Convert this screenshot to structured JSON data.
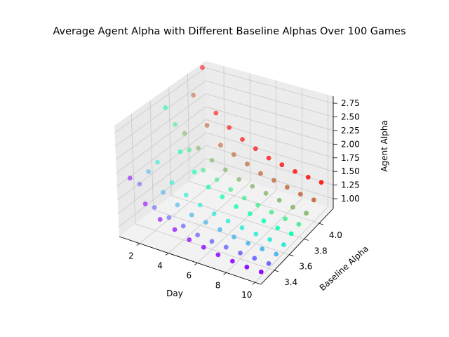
{
  "chart_data": {
    "type": "scatter3d",
    "title": "Average Agent Alpha with Different Baseline Alphas Over 100 Games",
    "xlabel": "Day",
    "ylabel": "Baseline Alpha",
    "zlabel": "Agent Alpha",
    "x_ticks": [
      "2",
      "4",
      "6",
      "8",
      "10"
    ],
    "y_ticks": [
      "3.4",
      "3.6",
      "3.8",
      "4.0"
    ],
    "z_ticks": [
      "1.00",
      "1.25",
      "1.50",
      "1.75",
      "2.00",
      "2.25",
      "2.50",
      "2.75"
    ],
    "xlim": [
      0.6,
      10.4
    ],
    "ylim": [
      3.22,
      4.19
    ],
    "zlim": [
      0.82,
      2.88
    ],
    "grid": true,
    "colormap": "rainbow (purple -> blue -> cyan -> green -> yellow -> orange -> red), colored by baseline alpha",
    "baselines": [
      3.3,
      3.4,
      3.5,
      3.6,
      3.7,
      3.8,
      3.9,
      4.0,
      4.1
    ],
    "days": [
      1,
      2,
      3,
      4,
      5,
      6,
      7,
      8,
      9,
      10
    ],
    "series": [
      {
        "baseline": 3.3,
        "values": [
          1.84,
          1.45,
          1.25,
          1.15,
          1.05,
          1.0,
          0.95,
          0.92,
          0.9,
          0.9
        ]
      },
      {
        "baseline": 3.4,
        "values": [
          1.6,
          1.25,
          1.15,
          1.08,
          1.0,
          0.97,
          0.95,
          0.93,
          0.92,
          0.91
        ]
      },
      {
        "baseline": 3.5,
        "values": [
          1.7,
          1.4,
          1.25,
          1.15,
          1.1,
          1.05,
          1.0,
          0.97,
          0.95,
          0.94
        ]
      },
      {
        "baseline": 3.6,
        "values": [
          1.75,
          1.45,
          1.3,
          1.2,
          1.12,
          1.07,
          1.03,
          1.0,
          0.98,
          0.97
        ]
      },
      {
        "baseline": 3.7,
        "values": [
          2.65,
          1.9,
          1.6,
          1.4,
          1.3,
          1.2,
          1.15,
          1.1,
          1.05,
          1.03
        ]
      },
      {
        "baseline": 3.8,
        "values": [
          2.2,
          1.8,
          1.5,
          1.4,
          1.3,
          1.22,
          1.17,
          1.12,
          1.08,
          1.06
        ]
      },
      {
        "baseline": 3.9,
        "values": [
          1.9,
          1.7,
          1.55,
          1.45,
          1.35,
          1.3,
          1.25,
          1.2,
          1.15,
          1.12
        ]
      },
      {
        "baseline": 4.0,
        "values": [
          2.5,
          2.0,
          1.7,
          1.6,
          1.5,
          1.4,
          1.35,
          1.3,
          1.25,
          1.22
        ]
      },
      {
        "baseline": 4.1,
        "values": [
          2.9,
          2.1,
          1.9,
          1.75,
          1.65,
          1.55,
          1.5,
          1.45,
          1.42,
          1.4
        ]
      }
    ]
  }
}
